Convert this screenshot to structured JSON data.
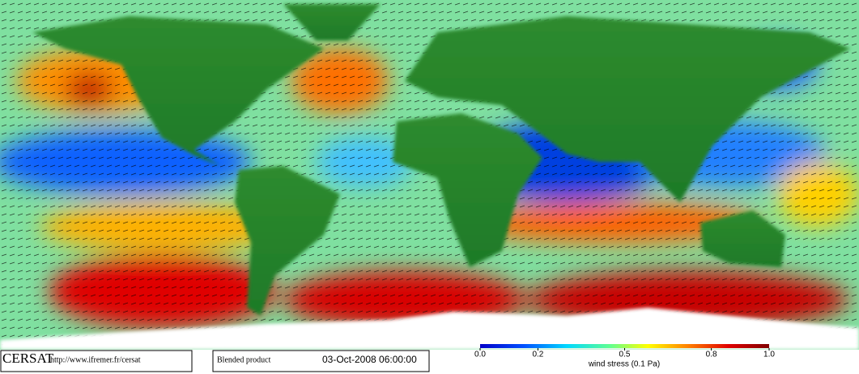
{
  "footer": {
    "logo": "CERSAT",
    "url": "http://www.ifremer.fr/cersat",
    "product": "Blended product",
    "date": "03-Oct-2008 06:00:00"
  },
  "colorbar": {
    "label": "wind stress (0.1 Pa)",
    "range": [
      0,
      1
    ],
    "ticks": [
      {
        "value": 0,
        "label": "0.0"
      },
      0.2,
      0.5,
      0.8,
      {
        "value": 1,
        "label": "1.0"
      }
    ]
  }
}
